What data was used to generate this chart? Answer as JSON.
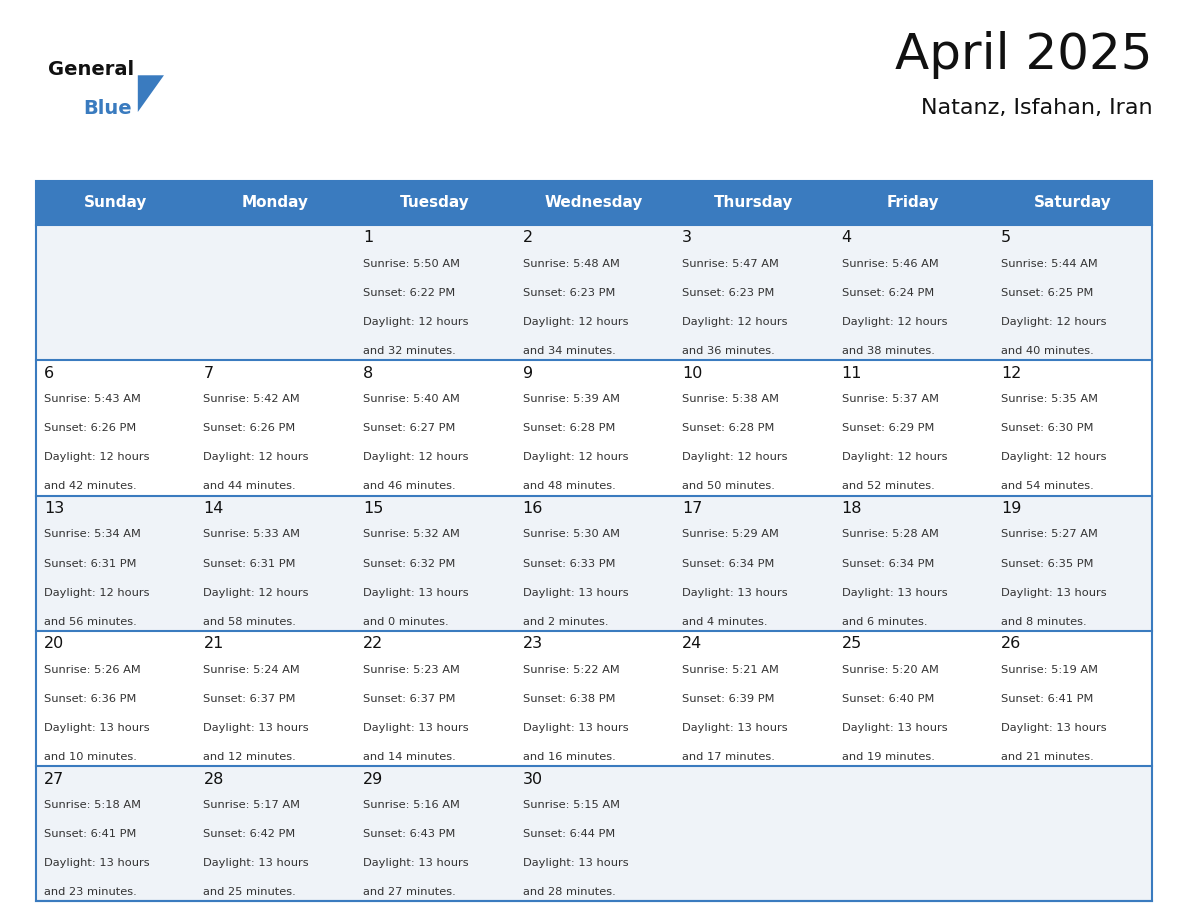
{
  "title": "April 2025",
  "subtitle": "Natanz, Isfahan, Iran",
  "header_bg_color": "#3a7bbf",
  "header_text_color": "#ffffff",
  "row_bg_even": "#eff3f8",
  "row_bg_odd": "#ffffff",
  "border_color": "#3a7bbf",
  "day_names": [
    "Sunday",
    "Monday",
    "Tuesday",
    "Wednesday",
    "Thursday",
    "Friday",
    "Saturday"
  ],
  "title_color": "#111111",
  "subtitle_color": "#111111",
  "cell_text_color": "#333333",
  "day_num_color": "#111111",
  "logo_general_color": "#111111",
  "logo_blue_color": "#3a7bbf",
  "fig_width": 11.88,
  "fig_height": 9.18,
  "weeks": [
    [
      {
        "day": "",
        "sunrise": "",
        "sunset": "",
        "daylight": ""
      },
      {
        "day": "",
        "sunrise": "",
        "sunset": "",
        "daylight": ""
      },
      {
        "day": "1",
        "sunrise": "5:50 AM",
        "sunset": "6:22 PM",
        "daylight": "12 hours\nand 32 minutes."
      },
      {
        "day": "2",
        "sunrise": "5:48 AM",
        "sunset": "6:23 PM",
        "daylight": "12 hours\nand 34 minutes."
      },
      {
        "day": "3",
        "sunrise": "5:47 AM",
        "sunset": "6:23 PM",
        "daylight": "12 hours\nand 36 minutes."
      },
      {
        "day": "4",
        "sunrise": "5:46 AM",
        "sunset": "6:24 PM",
        "daylight": "12 hours\nand 38 minutes."
      },
      {
        "day": "5",
        "sunrise": "5:44 AM",
        "sunset": "6:25 PM",
        "daylight": "12 hours\nand 40 minutes."
      }
    ],
    [
      {
        "day": "6",
        "sunrise": "5:43 AM",
        "sunset": "6:26 PM",
        "daylight": "12 hours\nand 42 minutes."
      },
      {
        "day": "7",
        "sunrise": "5:42 AM",
        "sunset": "6:26 PM",
        "daylight": "12 hours\nand 44 minutes."
      },
      {
        "day": "8",
        "sunrise": "5:40 AM",
        "sunset": "6:27 PM",
        "daylight": "12 hours\nand 46 minutes."
      },
      {
        "day": "9",
        "sunrise": "5:39 AM",
        "sunset": "6:28 PM",
        "daylight": "12 hours\nand 48 minutes."
      },
      {
        "day": "10",
        "sunrise": "5:38 AM",
        "sunset": "6:28 PM",
        "daylight": "12 hours\nand 50 minutes."
      },
      {
        "day": "11",
        "sunrise": "5:37 AM",
        "sunset": "6:29 PM",
        "daylight": "12 hours\nand 52 minutes."
      },
      {
        "day": "12",
        "sunrise": "5:35 AM",
        "sunset": "6:30 PM",
        "daylight": "12 hours\nand 54 minutes."
      }
    ],
    [
      {
        "day": "13",
        "sunrise": "5:34 AM",
        "sunset": "6:31 PM",
        "daylight": "12 hours\nand 56 minutes."
      },
      {
        "day": "14",
        "sunrise": "5:33 AM",
        "sunset": "6:31 PM",
        "daylight": "12 hours\nand 58 minutes."
      },
      {
        "day": "15",
        "sunrise": "5:32 AM",
        "sunset": "6:32 PM",
        "daylight": "13 hours\nand 0 minutes."
      },
      {
        "day": "16",
        "sunrise": "5:30 AM",
        "sunset": "6:33 PM",
        "daylight": "13 hours\nand 2 minutes."
      },
      {
        "day": "17",
        "sunrise": "5:29 AM",
        "sunset": "6:34 PM",
        "daylight": "13 hours\nand 4 minutes."
      },
      {
        "day": "18",
        "sunrise": "5:28 AM",
        "sunset": "6:34 PM",
        "daylight": "13 hours\nand 6 minutes."
      },
      {
        "day": "19",
        "sunrise": "5:27 AM",
        "sunset": "6:35 PM",
        "daylight": "13 hours\nand 8 minutes."
      }
    ],
    [
      {
        "day": "20",
        "sunrise": "5:26 AM",
        "sunset": "6:36 PM",
        "daylight": "13 hours\nand 10 minutes."
      },
      {
        "day": "21",
        "sunrise": "5:24 AM",
        "sunset": "6:37 PM",
        "daylight": "13 hours\nand 12 minutes."
      },
      {
        "day": "22",
        "sunrise": "5:23 AM",
        "sunset": "6:37 PM",
        "daylight": "13 hours\nand 14 minutes."
      },
      {
        "day": "23",
        "sunrise": "5:22 AM",
        "sunset": "6:38 PM",
        "daylight": "13 hours\nand 16 minutes."
      },
      {
        "day": "24",
        "sunrise": "5:21 AM",
        "sunset": "6:39 PM",
        "daylight": "13 hours\nand 17 minutes."
      },
      {
        "day": "25",
        "sunrise": "5:20 AM",
        "sunset": "6:40 PM",
        "daylight": "13 hours\nand 19 minutes."
      },
      {
        "day": "26",
        "sunrise": "5:19 AM",
        "sunset": "6:41 PM",
        "daylight": "13 hours\nand 21 minutes."
      }
    ],
    [
      {
        "day": "27",
        "sunrise": "5:18 AM",
        "sunset": "6:41 PM",
        "daylight": "13 hours\nand 23 minutes."
      },
      {
        "day": "28",
        "sunrise": "5:17 AM",
        "sunset": "6:42 PM",
        "daylight": "13 hours\nand 25 minutes."
      },
      {
        "day": "29",
        "sunrise": "5:16 AM",
        "sunset": "6:43 PM",
        "daylight": "13 hours\nand 27 minutes."
      },
      {
        "day": "30",
        "sunrise": "5:15 AM",
        "sunset": "6:44 PM",
        "daylight": "13 hours\nand 28 minutes."
      },
      {
        "day": "",
        "sunrise": "",
        "sunset": "",
        "daylight": ""
      },
      {
        "day": "",
        "sunrise": "",
        "sunset": "",
        "daylight": ""
      },
      {
        "day": "",
        "sunrise": "",
        "sunset": "",
        "daylight": ""
      }
    ]
  ]
}
